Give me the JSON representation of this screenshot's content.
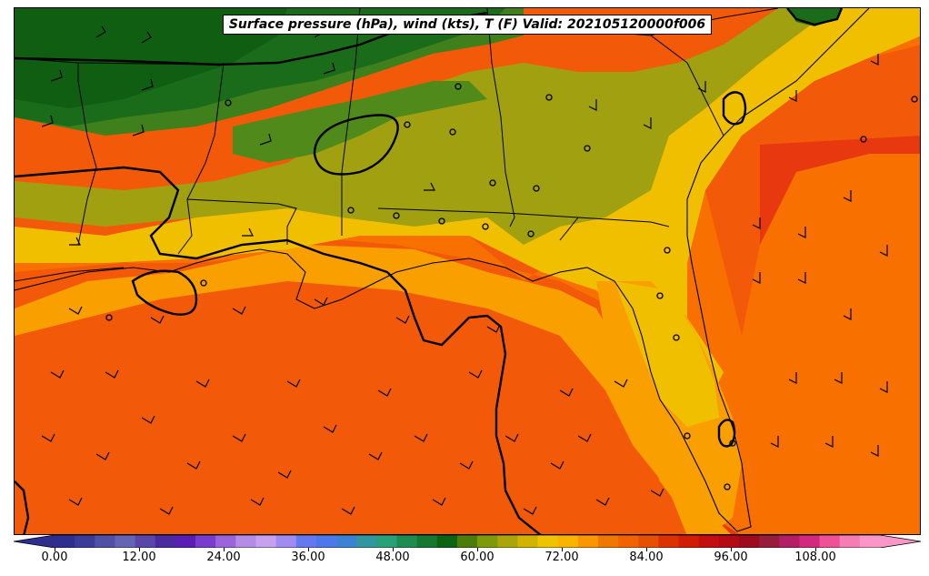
{
  "title": "Surface pressure (hPa), wind (kts), T (F) Valid: 202105120000f006",
  "colorbar": {
    "tick_labels": [
      "0.00",
      "12.00",
      "24.00",
      "36.00",
      "48.00",
      "60.00",
      "72.00",
      "84.00",
      "96.00",
      "108.00"
    ],
    "colors": [
      "#2e2e8f",
      "#3b3b9a",
      "#5050a6",
      "#6464b4",
      "#5a46a8",
      "#4b2aa0",
      "#5a1eb4",
      "#7a3ccc",
      "#9c64dc",
      "#b48ce6",
      "#c8a0f0",
      "#a08cf0",
      "#6478f0",
      "#4c78ec",
      "#3c82d2",
      "#3296a0",
      "#28a078",
      "#1e8c50",
      "#147832",
      "#0a6414",
      "#4b7d0a",
      "#7d9a0a",
      "#aaa50a",
      "#d2b400",
      "#f0c300",
      "#fab400",
      "#fa9600",
      "#f07800",
      "#f06400",
      "#e65000",
      "#dc3200",
      "#d21e00",
      "#c30f0f",
      "#b40a14",
      "#a00a1e",
      "#961e3c",
      "#b41e64",
      "#d2287d",
      "#f05096",
      "#f57db4",
      "#fa96c8"
    ]
  },
  "legend_values": {
    "temperature_colors": {
      "dark_green_50s": "#1a6b1a",
      "green_60": "#3f7f1c",
      "olive_65": "#a0a010",
      "yellow_70": "#f0c000",
      "orange_75": "#f9a000",
      "orange_80": "#f77000",
      "red_orange_85": "#f25a0a",
      "red_90": "#e8380f"
    }
  }
}
